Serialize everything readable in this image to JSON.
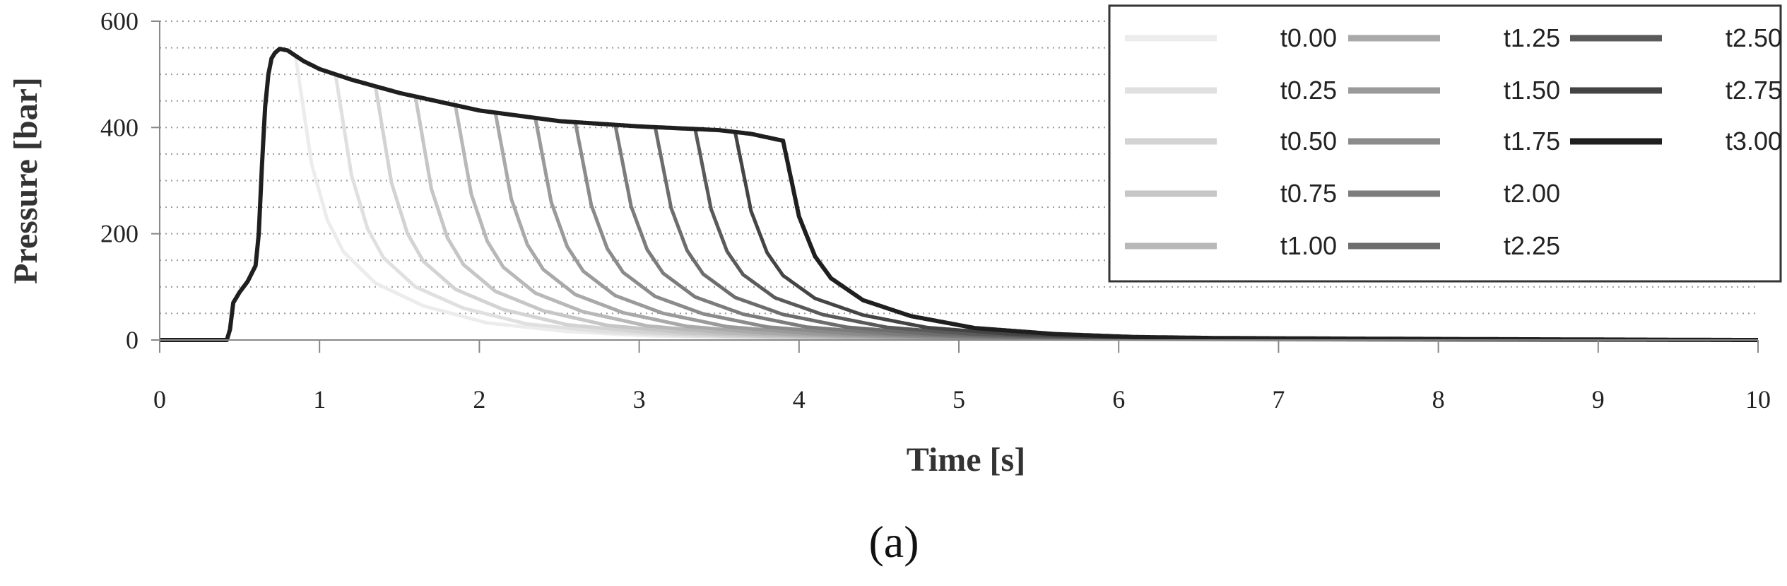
{
  "chart_data": {
    "type": "line",
    "xlabel": "Time [s]",
    "ylabel": "Pressure [bar]",
    "xlim": [
      0,
      10
    ],
    "ylim": [
      0,
      600
    ],
    "x_ticks": [
      "0",
      "1",
      "2",
      "3",
      "4",
      "5",
      "6",
      "7",
      "8",
      "9",
      "10"
    ],
    "y_ticks": [
      "0",
      "200",
      "400",
      "600"
    ],
    "grid": "horizontal dotted minor lines every 50 bar",
    "legend_position": "top-right, 3 columns",
    "caption": "(a)",
    "plateau_curve": {
      "x": [
        0,
        0.42,
        0.44,
        0.46,
        0.5,
        0.55,
        0.6,
        0.62,
        0.64,
        0.66,
        0.68,
        0.7,
        0.72,
        0.75,
        0.8,
        0.85,
        0.9,
        1.0,
        1.2,
        1.5,
        2.0,
        2.5,
        3.0,
        3.5,
        3.7,
        3.9
      ],
      "y": [
        0,
        0,
        20,
        70,
        90,
        110,
        140,
        200,
        330,
        440,
        500,
        530,
        540,
        548,
        545,
        535,
        525,
        510,
        490,
        465,
        432,
        412,
        402,
        395,
        388,
        375
      ]
    },
    "decay_curve": {
      "dt": [
        0,
        0.1,
        0.2,
        0.3,
        0.5,
        0.8,
        1.2,
        1.7,
        2.2,
        2.7,
        3.5,
        4.5,
        6.0
      ],
      "factor": [
        1,
        0.62,
        0.42,
        0.31,
        0.2,
        0.12,
        0.06,
        0.03,
        0.015,
        0.01,
        0.007,
        0.004,
        0
      ]
    },
    "series": [
      {
        "name": "t0.00",
        "release_time": 0.85,
        "color": "#ececec"
      },
      {
        "name": "t0.25",
        "release_time": 1.1,
        "color": "#e0e0e0"
      },
      {
        "name": "t0.50",
        "release_time": 1.35,
        "color": "#d3d3d3"
      },
      {
        "name": "t0.75",
        "release_time": 1.6,
        "color": "#c6c6c6"
      },
      {
        "name": "t1.00",
        "release_time": 1.85,
        "color": "#b8b8b8"
      },
      {
        "name": "t1.25",
        "release_time": 2.1,
        "color": "#a9a9a9"
      },
      {
        "name": "t1.50",
        "release_time": 2.35,
        "color": "#9a9a9a"
      },
      {
        "name": "t1.75",
        "release_time": 2.6,
        "color": "#8b8b8b"
      },
      {
        "name": "t2.00",
        "release_time": 2.85,
        "color": "#7c7c7c"
      },
      {
        "name": "t2.25",
        "release_time": 3.1,
        "color": "#6d6d6d"
      },
      {
        "name": "t2.50",
        "release_time": 3.35,
        "color": "#5a5a5a"
      },
      {
        "name": "t2.75",
        "release_time": 3.6,
        "color": "#444444"
      },
      {
        "name": "t3.00",
        "release_time": 3.9,
        "color": "#1f1f1f"
      }
    ]
  }
}
